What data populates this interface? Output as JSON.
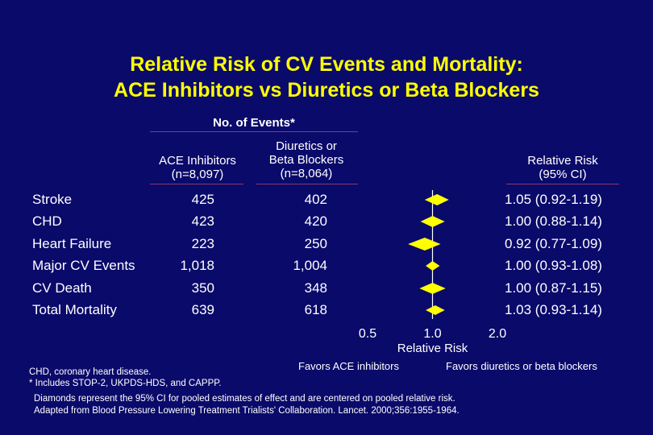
{
  "title_line1": "Relative Risk of CV Events and Mortality:",
  "title_line2": "ACE Inhibitors vs Diuretics or Beta Blockers",
  "header": {
    "events": "No. of Events*",
    "ace_label": "ACE Inhibitors",
    "ace_n": "(n=8,097)",
    "div_label_1": "Diuretics or",
    "div_label_2": "Beta Blockers",
    "div_n": "(n=8,064)",
    "rr_label": "Relative Risk",
    "rr_ci": "(95% CI)"
  },
  "rows": [
    {
      "label": "Stroke",
      "ace": "425",
      "div": "402",
      "ci_text": "1.05 (0.92-1.19)"
    },
    {
      "label": "CHD",
      "ace": "423",
      "div": "420",
      "ci_text": "1.00 (0.88-1.14)"
    },
    {
      "label": "Heart Failure",
      "ace": "223",
      "div": "250",
      "ci_text": "0.92 (0.77-1.09)"
    },
    {
      "label": "Major CV Events",
      "ace": "1,018",
      "div": "1,004",
      "ci_text": "1.00 (0.93-1.08)"
    },
    {
      "label": "CV Death",
      "ace": "350",
      "div": "348",
      "ci_text": "1.00 (0.87-1.15)"
    },
    {
      "label": "Total Mortality",
      "ace": "639",
      "div": "618",
      "ci_text": "1.03 (0.93-1.14)"
    }
  ],
  "chart_data": {
    "type": "forest",
    "categories": [
      "Stroke",
      "CHD",
      "Heart Failure",
      "Major CV Events",
      "CV Death",
      "Total Mortality"
    ],
    "estimate": [
      1.05,
      1.0,
      0.92,
      1.0,
      1.0,
      1.03
    ],
    "ci_low": [
      0.92,
      0.88,
      0.77,
      0.93,
      0.87,
      0.93
    ],
    "ci_high": [
      1.19,
      1.14,
      1.09,
      1.08,
      1.15,
      1.14
    ],
    "x_scale": "log",
    "x_ticks": [
      "0.5",
      "1.0",
      "2.0"
    ],
    "xlim": [
      0.5,
      2.0
    ],
    "xlabel": "Relative Risk",
    "favors_left": "Favors ACE inhibitors",
    "favors_right": "Favors diuretics or beta blockers",
    "marker_color": "#ffff00"
  },
  "footnotes": [
    "CHD, coronary heart disease.",
    "* Includes STOP-2, UKPDS-HDS, and CAPPP.",
    "Diamonds represent the 95% CI for pooled estimates of effect and are centered on pooled relative risk.",
    "Adapted from Blood Pressure Lowering Treatment Trialists' Collaboration. Lancet. 2000;356:1955-1964."
  ]
}
